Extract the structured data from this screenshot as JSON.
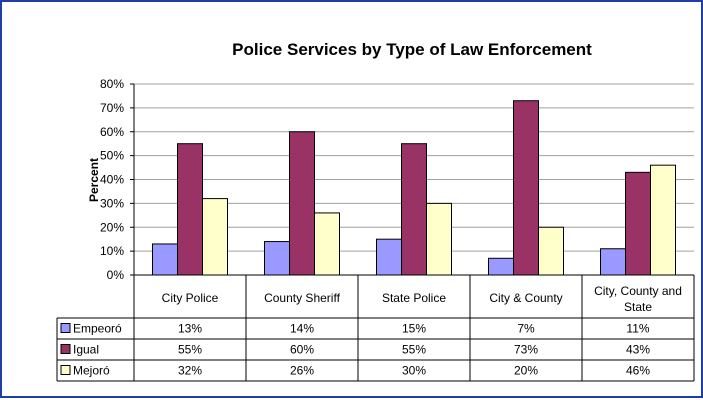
{
  "chart_data": {
    "type": "bar",
    "title": "Police Services by Type of Law Enforcement",
    "ylabel": "Percent",
    "ylim": [
      0,
      80
    ],
    "yticks": [
      "0%",
      "10%",
      "20%",
      "30%",
      "40%",
      "50%",
      "60%",
      "70%",
      "80%"
    ],
    "categories": [
      "City Police",
      "County Sheriff",
      "State Police",
      "City & County",
      "City, County and State"
    ],
    "series": [
      {
        "name": "Empeoró",
        "values": [
          13,
          14,
          15,
          7,
          11
        ],
        "labels": [
          "13%",
          "14%",
          "15%",
          "7%",
          "11%"
        ],
        "color": "#9999ff"
      },
      {
        "name": "Igual",
        "values": [
          55,
          60,
          55,
          73,
          43
        ],
        "labels": [
          "55%",
          "60%",
          "55%",
          "73%",
          "43%"
        ],
        "color": "#993366"
      },
      {
        "name": "Mejoró",
        "values": [
          32,
          26,
          30,
          20,
          46
        ],
        "labels": [
          "32%",
          "26%",
          "30%",
          "20%",
          "46%"
        ],
        "color": "#ffffcc"
      }
    ],
    "grid": true
  }
}
